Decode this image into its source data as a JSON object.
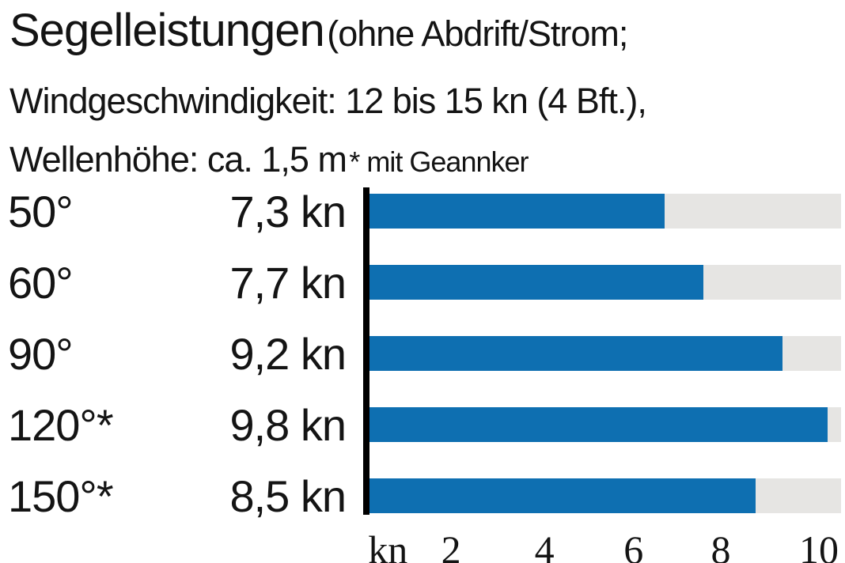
{
  "header": {
    "title_main": "Segelleistungen",
    "title_paren": "(ohne Abdrift/Strom;",
    "title_line2": "Windgeschwindigkeit: 12 bis 15 kn (4 Bft.),",
    "title_line3": "Wellenhöhe: ca. 1,5 m",
    "footnote": "* mit Geannker"
  },
  "chart_data": {
    "type": "bar",
    "orientation": "horizontal",
    "title": "Segelleistungen (ohne Abdrift/Strom; Windgeschwindigkeit: 12 bis 15 kn (4 Bft.), Wellenhöhe: ca. 1,5 m; * mit Geannker)",
    "categories": [
      "50°",
      "60°",
      "90°",
      "120°*",
      "150°*"
    ],
    "values": [
      7.3,
      7.7,
      9.2,
      9.8,
      8.5
    ],
    "value_labels": [
      "7,3 kn",
      "7,7 kn",
      "9,2 kn",
      "9,8 kn",
      "8,5 kn"
    ],
    "unit": "kn",
    "xlabel": "kn",
    "xlim": [
      0,
      10.3
    ],
    "grid": false,
    "legend": false,
    "bar_fill_pct": [
      62.6,
      70.8,
      87.6,
      97.1,
      81.9
    ],
    "xticks": [
      {
        "label": "kn",
        "pos_pct": 3.9
      },
      {
        "label": "2",
        "pos_pct": 17.3
      },
      {
        "label": "4",
        "pos_pct": 37.1
      },
      {
        "label": "6",
        "pos_pct": 56.0
      },
      {
        "label": "8",
        "pos_pct": 74.5
      },
      {
        "label": "10",
        "pos_pct": 95.3
      }
    ],
    "colors": {
      "bar": "#0e6fb1",
      "track": "#e6e5e3",
      "axis": "#000000",
      "text": "#141414"
    }
  }
}
